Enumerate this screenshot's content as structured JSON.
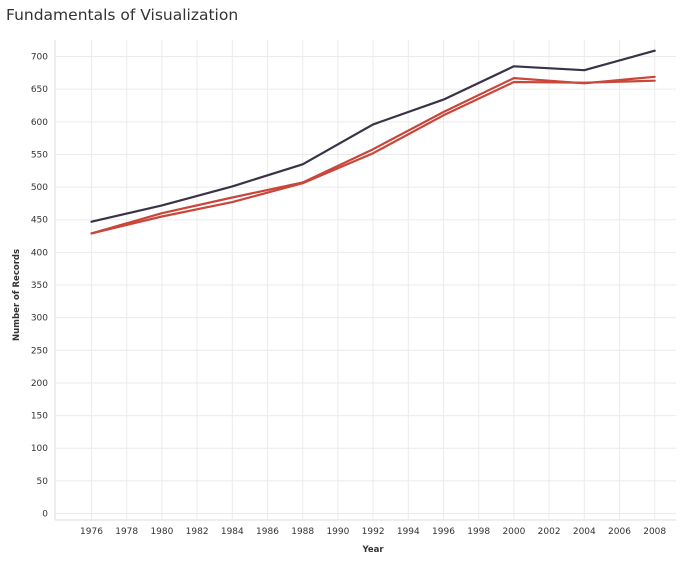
{
  "chart_data": {
    "type": "line",
    "title": "Fundamentals of Visualization",
    "xlabel": "Year",
    "ylabel": "Number of Records",
    "xlim": [
      1974,
      2010
    ],
    "ylim": [
      0,
      720
    ],
    "x_ticks": [
      1976,
      1978,
      1980,
      1982,
      1984,
      1986,
      1988,
      1990,
      1992,
      1994,
      1996,
      1998,
      2000,
      2002,
      2004,
      2006,
      2008
    ],
    "y_ticks": [
      0,
      50,
      100,
      150,
      200,
      250,
      300,
      350,
      400,
      450,
      500,
      550,
      600,
      650,
      700
    ],
    "grid": true,
    "legend": "none",
    "series": [
      {
        "color": "#3a3347",
        "x": [
          1976,
          1980,
          1984,
          1988,
          1992,
          1996,
          2000,
          2004,
          2008
        ],
        "y": [
          447,
          472,
          501,
          535,
          596,
          634,
          685,
          679,
          709
        ]
      },
      {
        "color": "#c8473a",
        "x": [
          1976,
          1980,
          1984,
          1988,
          1992,
          1996,
          2000,
          2004,
          2008
        ],
        "y": [
          429,
          460,
          484,
          507,
          558,
          615,
          667,
          659,
          669
        ]
      },
      {
        "color": "#c8473a",
        "x": [
          1976,
          1980,
          1984,
          1988,
          1992,
          1996,
          2000,
          2004,
          2008
        ],
        "y": [
          429,
          455,
          477,
          506,
          552,
          610,
          661,
          660,
          663
        ]
      }
    ]
  }
}
